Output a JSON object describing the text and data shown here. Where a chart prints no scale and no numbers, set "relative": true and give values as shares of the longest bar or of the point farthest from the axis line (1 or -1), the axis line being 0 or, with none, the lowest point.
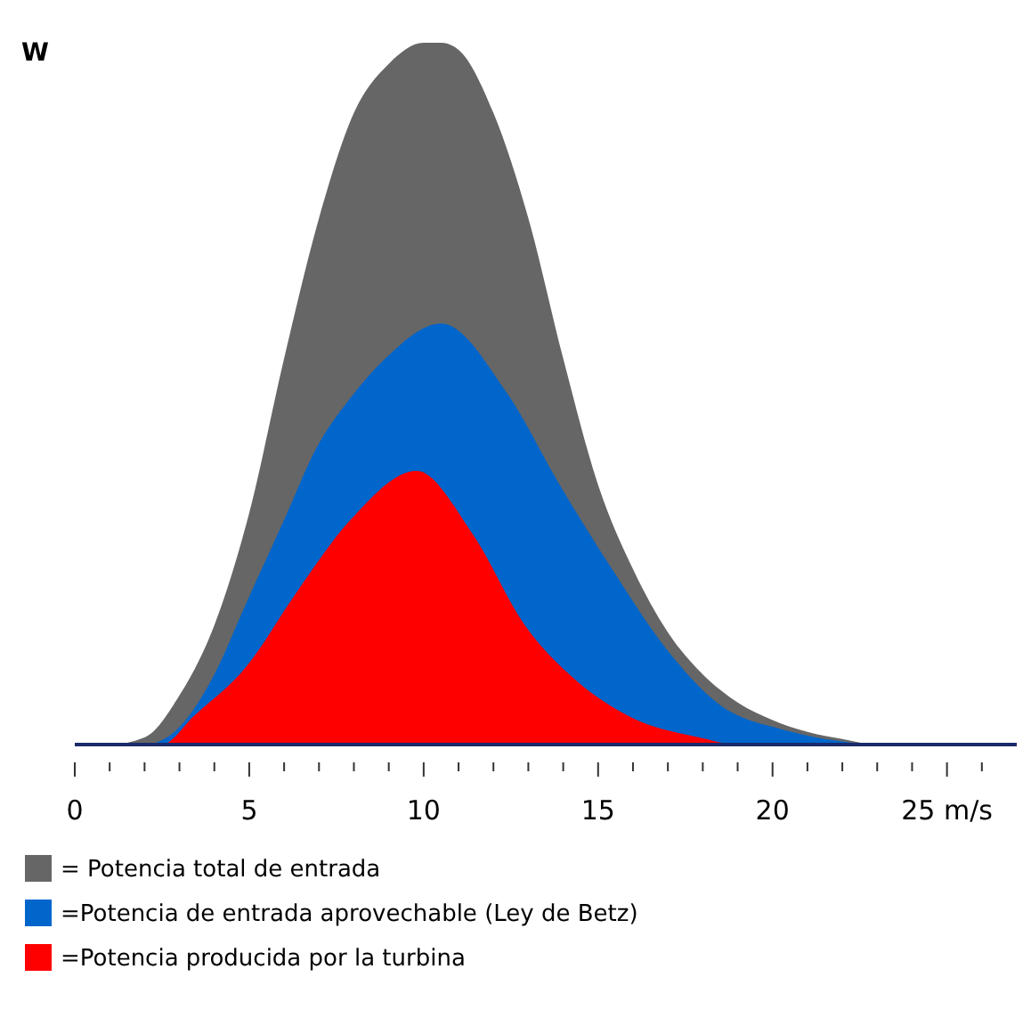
{
  "chart_data": {
    "type": "area",
    "relative": true,
    "ylabel": "W",
    "legend": "bottom",
    "xlim": [
      0,
      27
    ],
    "xticks": [
      0,
      {
        "value": 1,
        "label": null
      },
      {
        "value": 2,
        "label": null
      },
      {
        "value": 3,
        "label": null
      },
      {
        "value": 4,
        "label": null
      },
      5,
      {
        "value": 6,
        "label": null
      },
      {
        "value": 7,
        "label": null
      },
      {
        "value": 8,
        "label": null
      },
      {
        "value": 9,
        "label": null
      },
      10,
      {
        "value": 11,
        "label": null
      },
      {
        "value": 12,
        "label": null
      },
      {
        "value": 13,
        "label": null
      },
      {
        "value": 14,
        "label": null
      },
      15,
      {
        "value": 16,
        "label": null
      },
      {
        "value": 17,
        "label": null
      },
      {
        "value": 18,
        "label": null
      },
      {
        "value": 19,
        "label": null
      },
      20,
      {
        "value": 21,
        "label": null
      },
      {
        "value": 22,
        "label": null
      },
      {
        "value": 23,
        "label": null
      },
      {
        "value": 24,
        "label": null
      },
      {
        "value": 25,
        "label": "25 m/s"
      },
      {
        "value": 26,
        "label": null
      }
    ],
    "series": [
      {
        "name": "= Potencia total de entrada",
        "color": "#666666",
        "x": [
          0,
          1,
          2,
          3,
          4,
          5,
          6,
          7,
          8,
          9,
          10,
          10.5,
          11,
          12,
          13,
          14,
          15,
          16,
          17,
          18,
          19,
          20,
          21,
          22,
          23,
          25,
          27
        ],
        "values": [
          0,
          0,
          0.01,
          0.07,
          0.17,
          0.33,
          0.55,
          0.75,
          0.9,
          0.97,
          1,
          1,
          0.99,
          0.9,
          0.75,
          0.55,
          0.37,
          0.25,
          0.16,
          0.1,
          0.06,
          0.035,
          0.018,
          0.008,
          0,
          0,
          0
        ]
      },
      {
        "name": "=Potencia de entrada aprovechable (Ley de Betz)",
        "color": "#0066cc",
        "x": [
          0,
          2,
          2.9,
          4,
          4.9,
          6,
          6.9,
          8,
          8.9,
          10.5,
          12.4,
          13.9,
          15.4,
          16.9,
          18.4,
          20.4,
          21.9,
          23,
          27
        ],
        "values": [
          0,
          0,
          0.02,
          0.1,
          0.2,
          0.32,
          0.42,
          0.5,
          0.55,
          0.6,
          0.5,
          0.37,
          0.25,
          0.14,
          0.06,
          0.02,
          0.005,
          0,
          0
        ]
      },
      {
        "name": "=Potencia producida por la turbina",
        "color": "#ff0000",
        "x": [
          0,
          2.5,
          3.4,
          4.9,
          6.4,
          7.9,
          9.8,
          11.4,
          12.9,
          14.4,
          15.9,
          17.9,
          19,
          27
        ],
        "values": [
          0,
          0,
          0.04,
          0.11,
          0.22,
          0.32,
          0.39,
          0.3,
          0.17,
          0.09,
          0.04,
          0.01,
          0,
          0
        ]
      }
    ]
  }
}
